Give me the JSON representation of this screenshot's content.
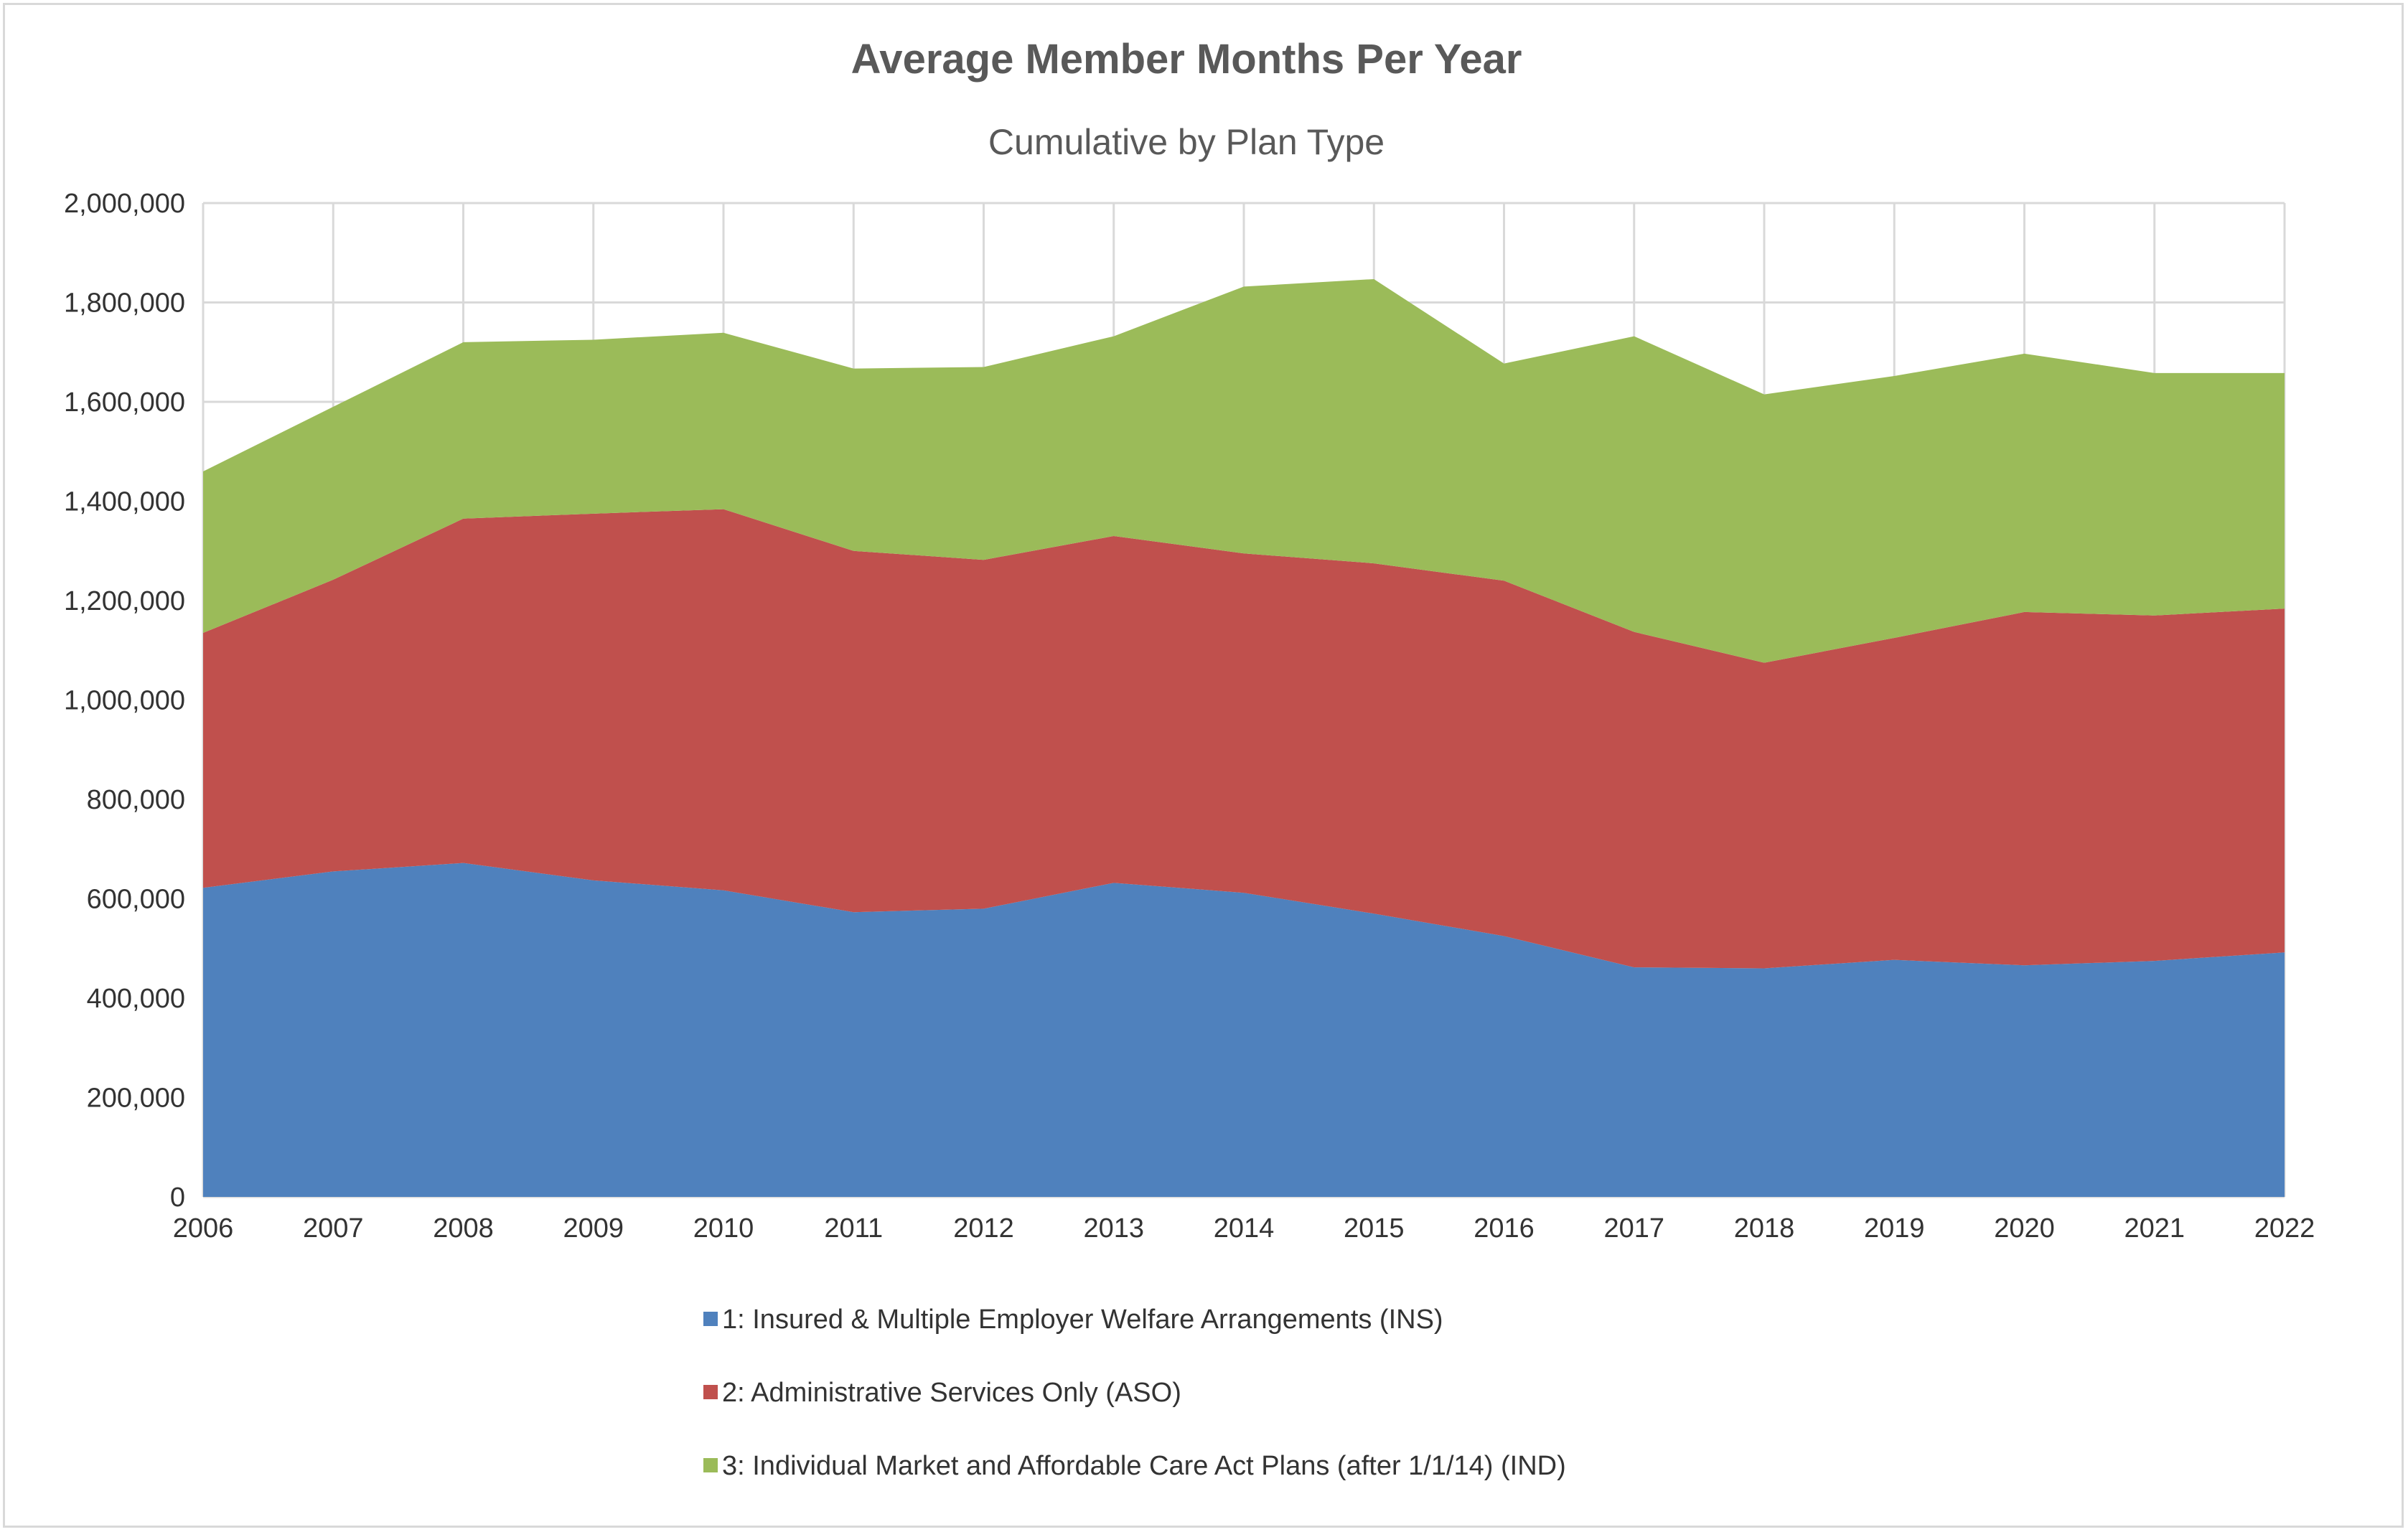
{
  "chart_data": {
    "type": "area",
    "stacked": true,
    "title": "Average Member Months Per Year",
    "subtitle": "Cumulative by Plan Type",
    "xlabel": "",
    "ylabel": "",
    "ylim": [
      0,
      2000000
    ],
    "yticks": [
      0,
      200000,
      400000,
      600000,
      800000,
      1000000,
      1200000,
      1400000,
      1600000,
      1800000,
      2000000
    ],
    "ytick_labels": [
      "0",
      "200,000",
      "400,000",
      "600,000",
      "800,000",
      "1,000,000",
      "1,200,000",
      "1,400,000",
      "1,600,000",
      "1,800,000",
      "2,000,000"
    ],
    "categories": [
      "2006",
      "2007",
      "2008",
      "2009",
      "2010",
      "2011",
      "2012",
      "2013",
      "2014",
      "2015",
      "2016",
      "2017",
      "2018",
      "2019",
      "2020",
      "2021",
      "2022"
    ],
    "grid": "vertical and horizontal",
    "legend_position": "bottom",
    "series": [
      {
        "name": "1: Insured & Multiple Employer Welfare Arrangements (INS)",
        "color": "#4f81bd",
        "values": [
          622000,
          655000,
          672000,
          637000,
          617000,
          573000,
          580000,
          632000,
          612000,
          570000,
          525000,
          462000,
          460000,
          477000,
          466000,
          475000,
          492000
        ]
      },
      {
        "name": "2: Administrative Services Only (ASO)",
        "color": "#c0504d",
        "values": [
          513000,
          587000,
          693000,
          738000,
          767000,
          727000,
          702000,
          698000,
          683000,
          705000,
          715000,
          675000,
          615000,
          648000,
          711000,
          695000,
          692000
        ]
      },
      {
        "name": "3: Individual Market and Affordable Care Act Plans (after 1/1/14) (IND)",
        "color": "#9bbb59",
        "values": [
          325000,
          348000,
          355000,
          350000,
          355000,
          367000,
          388000,
          402000,
          537000,
          572000,
          437000,
          595000,
          540000,
          527000,
          520000,
          488000,
          474000
        ]
      }
    ]
  }
}
